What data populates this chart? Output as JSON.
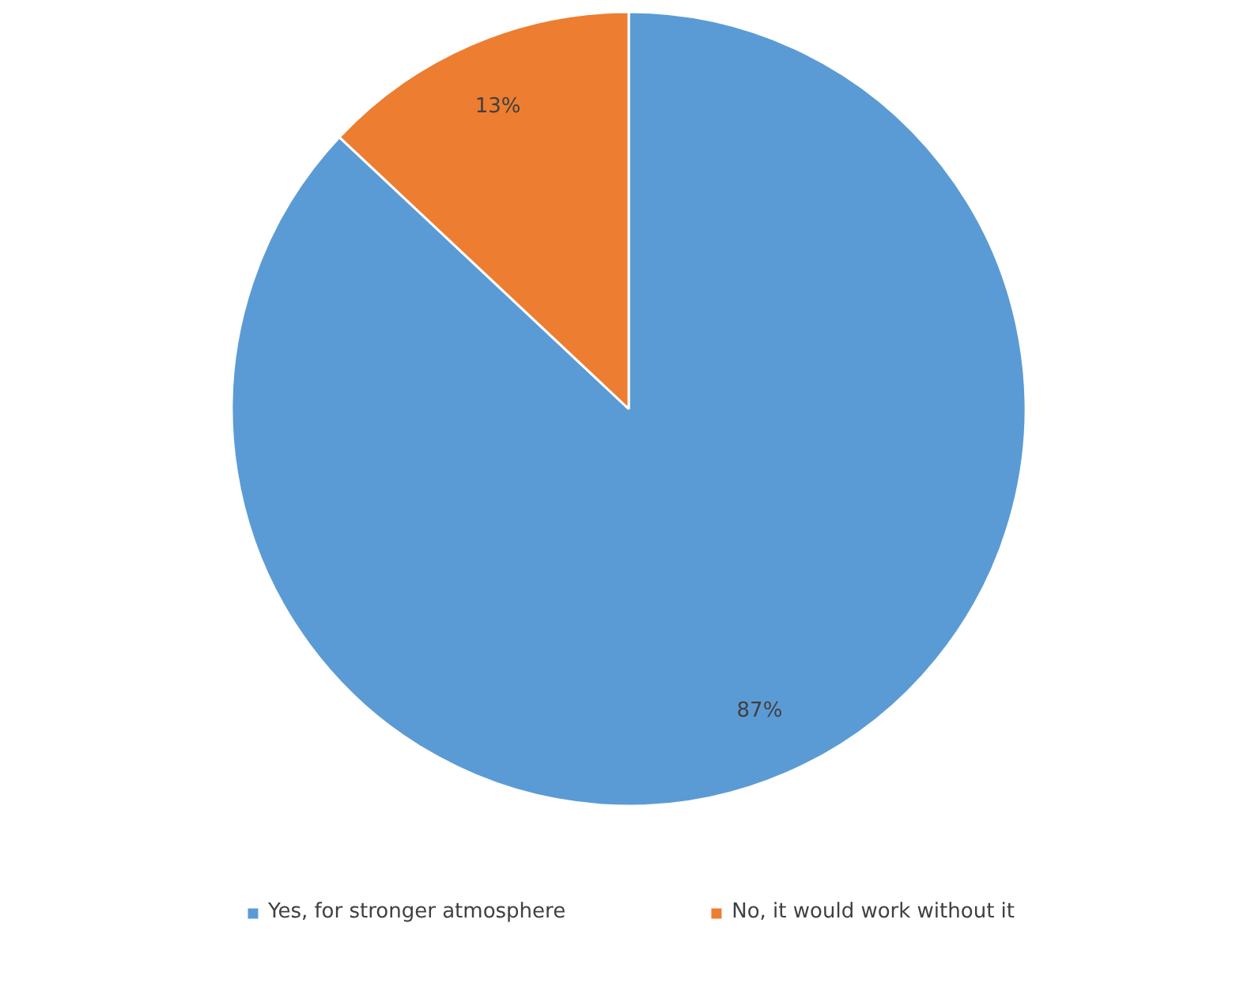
{
  "chart_data": {
    "type": "pie",
    "categories": [
      "Yes, for stronger atmosphere",
      "No, it would work without it"
    ],
    "values": [
      87,
      13
    ],
    "colors": [
      "#5b9bd5",
      "#ed7d31"
    ],
    "value_labels": [
      "87%",
      "13%"
    ],
    "legend": "bottom"
  }
}
